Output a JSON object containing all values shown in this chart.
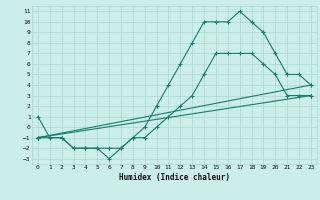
{
  "xlabel": "Humidex (Indice chaleur)",
  "bg_color": "#cceee8",
  "grid_color": "#a8d8d0",
  "line_color": "#1a7a6e",
  "xlim": [
    -0.5,
    23.5
  ],
  "ylim": [
    -3.5,
    11.5
  ],
  "xticks": [
    0,
    1,
    2,
    3,
    4,
    5,
    6,
    7,
    8,
    9,
    10,
    11,
    12,
    13,
    14,
    15,
    16,
    17,
    18,
    19,
    20,
    21,
    22,
    23
  ],
  "yticks": [
    -3,
    -2,
    -1,
    0,
    1,
    2,
    3,
    4,
    5,
    6,
    7,
    8,
    9,
    10,
    11
  ],
  "line1_x": [
    0,
    1,
    2,
    3,
    4,
    5,
    6,
    7,
    8,
    9,
    10,
    11,
    12,
    13,
    14,
    15,
    16,
    17,
    18,
    19,
    20,
    21,
    22,
    23
  ],
  "line1_y": [
    1,
    -1,
    -1,
    -2,
    -2,
    -2,
    -3,
    -2,
    -1,
    0,
    2,
    4,
    6,
    8,
    10,
    10,
    10,
    11,
    10,
    9,
    7,
    5,
    5,
    4
  ],
  "line2_x": [
    0,
    2,
    3,
    4,
    5,
    6,
    7,
    8,
    9,
    10,
    11,
    12,
    13,
    14,
    15,
    16,
    17,
    18,
    19,
    20,
    21,
    22,
    23
  ],
  "line2_y": [
    -1,
    -1,
    -2,
    -2,
    -2,
    -2,
    -2,
    -1,
    -1,
    0,
    1,
    2,
    3,
    5,
    7,
    7,
    7,
    7,
    6,
    5,
    3,
    3,
    3
  ],
  "line3_x": [
    0,
    23
  ],
  "line3_y": [
    -1,
    4
  ],
  "line4_x": [
    0,
    23
  ],
  "line4_y": [
    -1,
    3
  ]
}
